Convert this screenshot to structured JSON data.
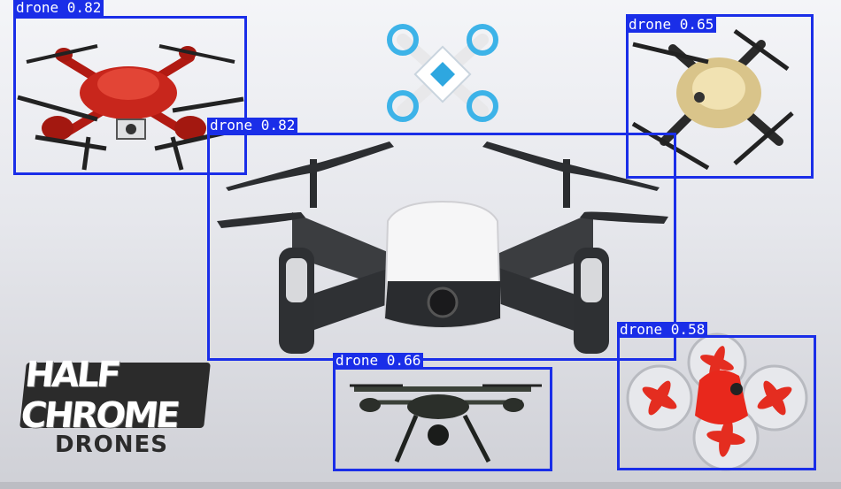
{
  "detections": [
    {
      "label": "drone 0.82"
    },
    {
      "label": "drone 0.82"
    },
    {
      "label": "drone 0.65"
    },
    {
      "label": "drone 0.58"
    },
    {
      "label": "drone 0.66"
    }
  ],
  "logo": {
    "top_text": "HALF CHROME",
    "bottom_text": "DRONES"
  },
  "colors": {
    "box": "#1a2ee8",
    "label_text": "#ffffff"
  }
}
